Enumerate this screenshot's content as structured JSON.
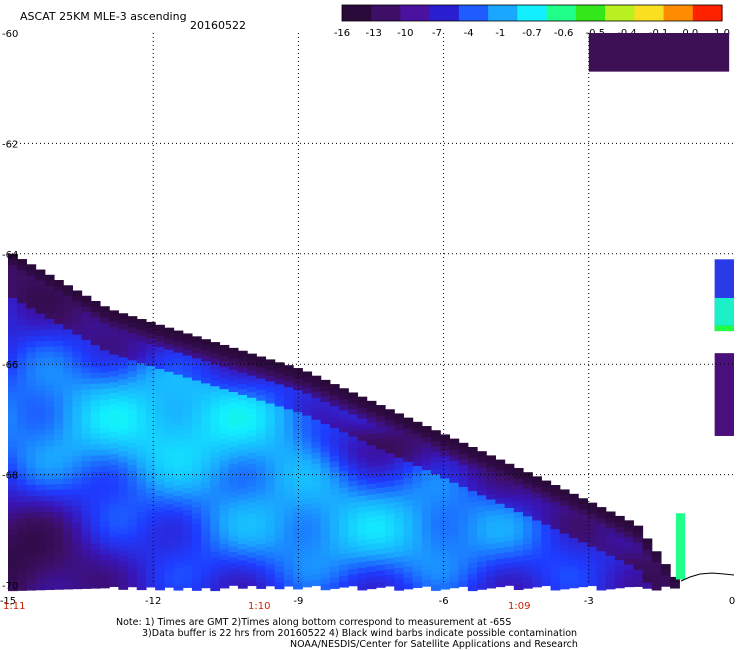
{
  "header": {
    "title": "ASCAT 25KM MLE-3 ascending",
    "date": "20160522"
  },
  "colorbar": {
    "labels": [
      "-16",
      "-13",
      "-10",
      "-7",
      "-4",
      "-1",
      "-0.7",
      "-0.6",
      "-0.5",
      "-0.4",
      "-0.1",
      "0.0",
      "1.0"
    ],
    "colors": [
      "#2a0a3a",
      "#3d0f66",
      "#4a12a0",
      "#2a1fd0",
      "#1e5cff",
      "#1aa8ff",
      "#12f0ff",
      "#20ff8a",
      "#33e81a",
      "#b8f020",
      "#f8e020",
      "#ff8c00",
      "#ff2200"
    ]
  },
  "axes": {
    "x_ticks": [
      "-15",
      "-12",
      "-9",
      "-6",
      "-3",
      "0"
    ],
    "y_ticks": [
      "-60",
      "-62",
      "-64",
      "-66",
      "-68",
      "-70"
    ],
    "time_labels": [
      "1:11",
      "1:10",
      "1:09"
    ]
  },
  "notes": {
    "line1": "Note: 1) Times are GMT 2)Times along bottom correspond to measurement at -65S",
    "line2": "3)Data buffer is 22 hrs from 20160522 4) Black wind barbs indicate possible contamination",
    "line3": "NOAA/NESDIS/Center for Satellite Applications and Research"
  },
  "chart_data": {
    "type": "heatmap",
    "title": "ASCAT 25KM MLE-3 ascending",
    "date": "20160522",
    "xlim": [
      -15,
      0
    ],
    "ylim": [
      -70,
      -60
    ],
    "x_ticks": [
      -15,
      -12,
      -9,
      -6,
      -3,
      0
    ],
    "y_ticks": [
      -60,
      -62,
      -64,
      -66,
      -68,
      -70
    ],
    "grid": true,
    "colorscale_levels": [
      -16,
      -13,
      -10,
      -7,
      -4,
      -1,
      -0.7,
      -0.6,
      -0.5,
      -0.4,
      -0.1,
      0.0,
      1.0
    ],
    "swath_edge": [
      [
        -15,
        -64.0
      ],
      [
        -13,
        -65.0
      ],
      [
        -9,
        -66.1
      ],
      [
        -6,
        -67.3
      ],
      [
        -4,
        -68.1
      ],
      [
        -2.1,
        -68.9
      ],
      [
        -1.2,
        -70
      ]
    ],
    "patches": [
      {
        "region": "top-right",
        "x": [
          -3.0,
          -0.1
        ],
        "y": [
          -60.0,
          -60.7
        ],
        "level": -16
      },
      {
        "region": "right-edge",
        "x": [
          -0.4,
          0.0
        ],
        "y": [
          -64.1,
          -65.4
        ],
        "level": -7
      },
      {
        "region": "right-edge",
        "x": [
          -0.4,
          0.0
        ],
        "y": [
          -65.8,
          -67.3
        ],
        "level": -13
      }
    ]
  }
}
